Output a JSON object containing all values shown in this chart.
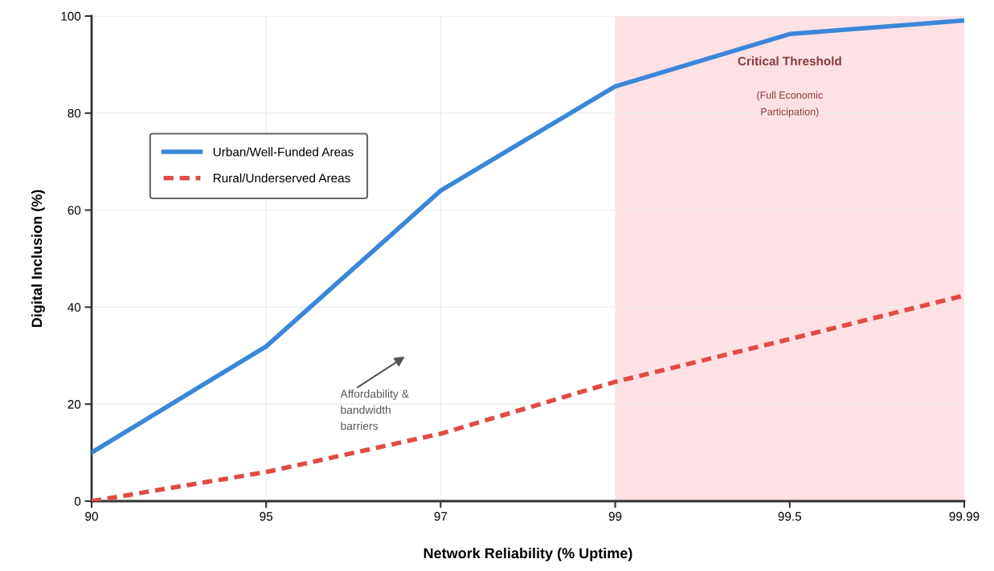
{
  "chart_data": {
    "type": "line",
    "xlabel": "Network Reliability (% Uptime)",
    "ylabel": "Digital Inclusion (%)",
    "categories": [
      "90",
      "95",
      "97",
      "99",
      "99.5",
      "99.99"
    ],
    "ylim": [
      0,
      100
    ],
    "yticks": [
      0,
      20,
      40,
      60,
      80,
      100
    ],
    "series": [
      {
        "name": "Urban/Well-Funded Areas",
        "color": "#3a87d9",
        "line_style": "solid",
        "values": [
          10,
          31.9,
          64,
          85.5,
          96.3,
          99.1
        ]
      },
      {
        "name": "Rural/Underserved Areas",
        "color": "#e04b43",
        "line_style": "dashed",
        "values": [
          0,
          6.0,
          13.9,
          24.6,
          33.4,
          42.4
        ]
      }
    ],
    "bands": [
      {
        "axis": "x",
        "from": "99",
        "to": "99.99",
        "label": "Critical Threshold",
        "color": "#fde1e4"
      }
    ],
    "annotations": [
      "(Full Economic Participation)",
      "Affordability & bandwidth barriers"
    ],
    "grid": true,
    "legend": "top left",
    "marker": "none"
  }
}
